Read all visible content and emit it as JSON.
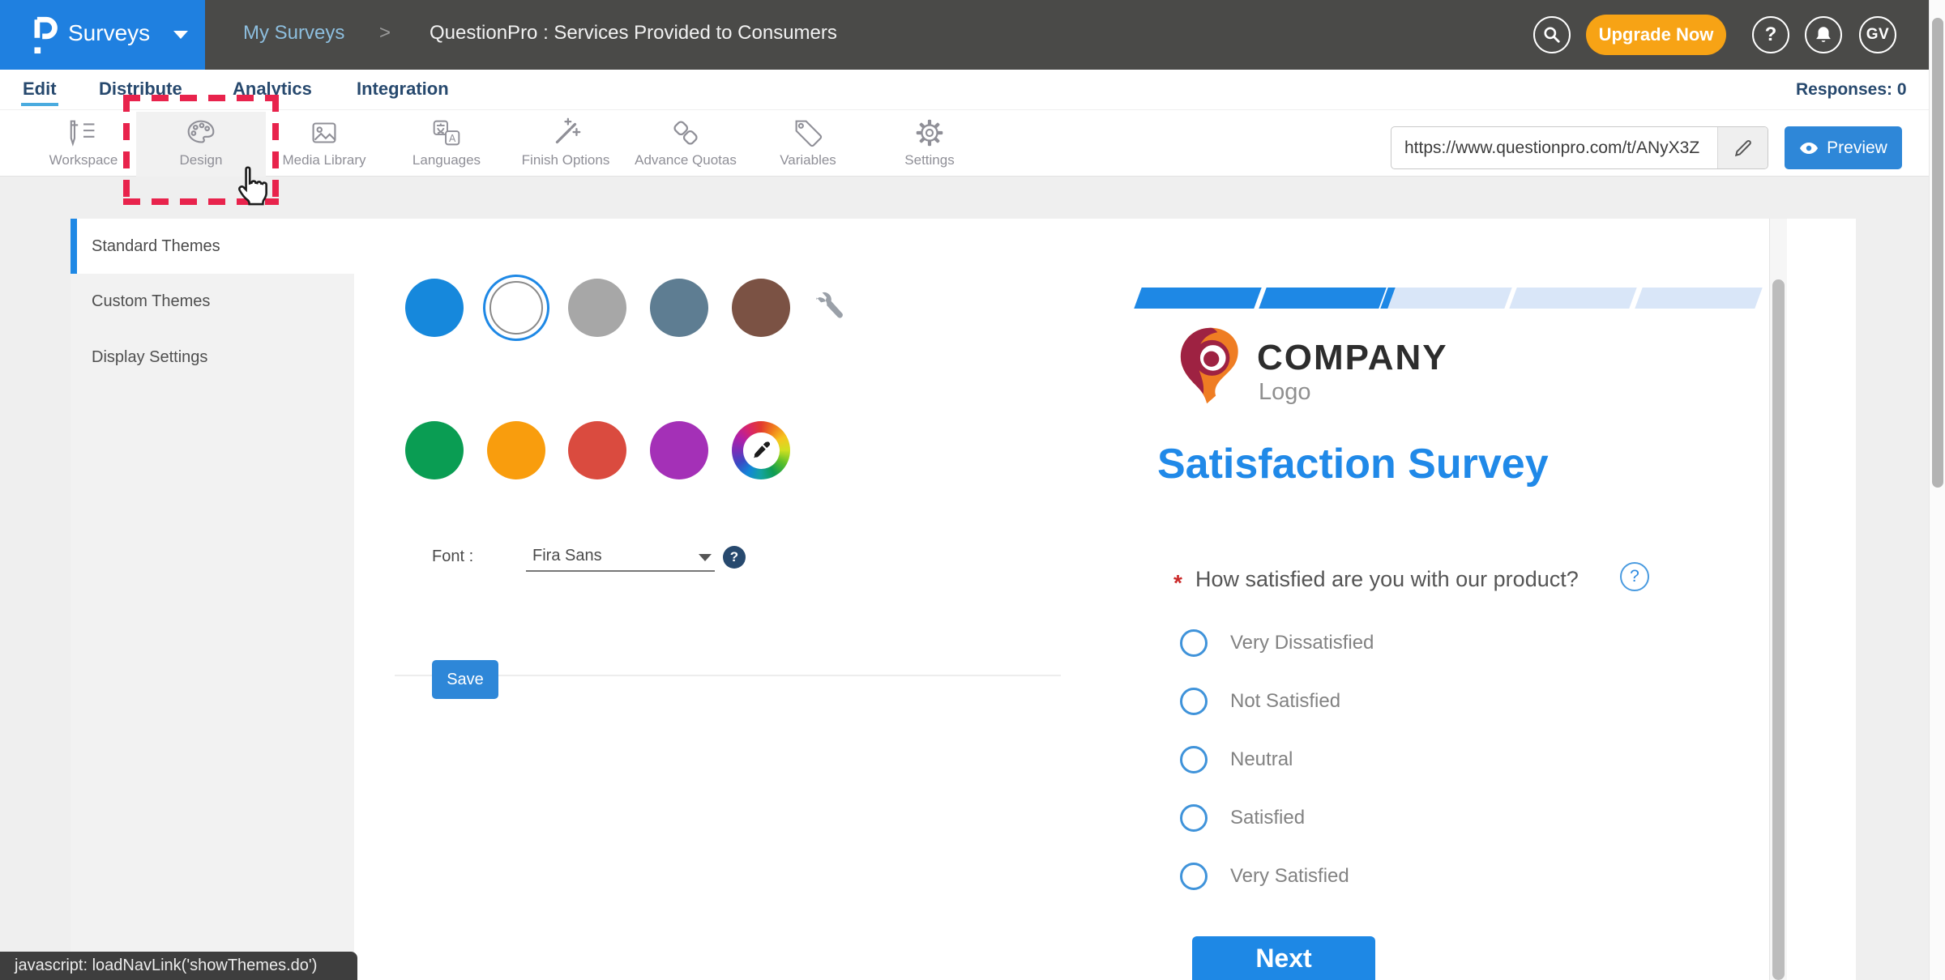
{
  "topbar": {
    "product": "Surveys",
    "breadcrumb_root": "My Surveys",
    "breadcrumb_sep": ">",
    "breadcrumb_current": "QuestionPro : Services Provided to Consumers",
    "upgrade_label": "Upgrade Now",
    "help_glyph": "?",
    "avatar_initials": "GV"
  },
  "nav": {
    "items": [
      {
        "label": "Edit",
        "active": true
      },
      {
        "label": "Distribute",
        "active": false
      },
      {
        "label": "Analytics",
        "active": false
      },
      {
        "label": "Integration",
        "active": false
      }
    ],
    "responses_label": "Responses: 0"
  },
  "toolbar": {
    "items": [
      {
        "label": "Workspace",
        "icon": "workspace-icon",
        "active": false
      },
      {
        "label": "Design",
        "icon": "design-icon",
        "active": true
      },
      {
        "label": "Media Library",
        "icon": "media-library-icon",
        "active": false
      },
      {
        "label": "Languages",
        "icon": "languages-icon",
        "active": false
      },
      {
        "label": "Finish Options",
        "icon": "finish-options-icon",
        "active": false
      },
      {
        "label": "Advance Quotas",
        "icon": "advance-quotas-icon",
        "active": false
      },
      {
        "label": "Variables",
        "icon": "variables-icon",
        "active": false
      },
      {
        "label": "Settings",
        "icon": "settings-icon",
        "active": false
      }
    ],
    "url_value": "https://www.questionpro.com/t/ANyX3Z",
    "preview_label": "Preview"
  },
  "sidebar": {
    "items": [
      "Standard Themes",
      "Custom Themes",
      "Display Settings"
    ],
    "active_index": 0
  },
  "theme_panel": {
    "row1_colors": [
      "#1688dc",
      "#ffffff",
      "#a7a7a7",
      "#5e7d92",
      "#7b5244"
    ],
    "row1_selected_index": 1,
    "row2_colors": [
      "#0a9d53",
      "#f99d0d",
      "#da4b3f",
      "#a430b7"
    ],
    "font_label": "Font :",
    "font_value": "Fira Sans",
    "font_help_glyph": "?",
    "save_label": "Save"
  },
  "survey_preview": {
    "progress": {
      "segments": 5,
      "filled": 2
    },
    "company_name": "COMPANY",
    "company_sub": "Logo",
    "title": "Satisfaction Survey",
    "required_marker": "*",
    "question": "How satisfied are you with our product?",
    "question_help_glyph": "?",
    "options": [
      "Very Dissatisfied",
      "Not Satisfied",
      "Neutral",
      "Satisfied",
      "Very Satisfied"
    ],
    "next_label": "Next",
    "accent_color": "#1e88e5"
  },
  "statusbar": {
    "text": "javascript: loadNavLink('showThemes.do')"
  },
  "icons": {
    "search-icon": "magnifying glass",
    "help-icon": "question mark in circle",
    "bell-icon": "notification bell",
    "caret-down-icon": "dropdown triangle",
    "workspace-icon": "pencil with list lines",
    "design-icon": "paint palette",
    "media-library-icon": "picture frame",
    "languages-icon": "translate squares",
    "finish-options-icon": "magic wand",
    "advance-quotas-icon": "chain links",
    "variables-icon": "tag",
    "settings-icon": "gear",
    "edit-url-icon": "pencil",
    "eye-icon": "eye",
    "wrench-icon": "wrench",
    "color-picker-icon": "eyedropper on color wheel",
    "cursor-icon": "hand pointer"
  },
  "colors": {
    "brand_blue": "#1f80e0",
    "topbar_dark": "#4a4a48",
    "upgrade_orange": "#f7a315",
    "nav_navy": "#27496e",
    "edit_underline": "#4aabdf",
    "highlight_red": "#e8234c",
    "action_blue": "#2e87d8",
    "progress_light": "#d9e6f8"
  }
}
